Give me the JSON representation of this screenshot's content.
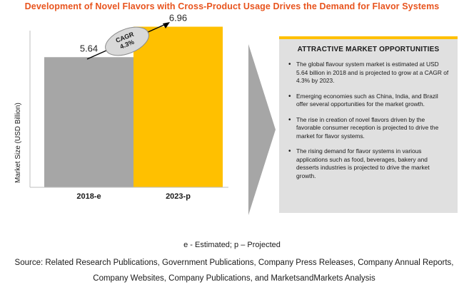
{
  "title": "Development of Novel Flavors with Cross-Product Usage Drives the Demand for Flavor Systems",
  "chart_data": {
    "type": "bar",
    "categories": [
      "2018-e",
      "2023-p"
    ],
    "values": [
      5.64,
      6.96
    ],
    "value_labels": [
      "5.64",
      "6.96"
    ],
    "ylabel": "Market Size (USD Billion)",
    "colors": [
      "#a6a6a6",
      "#ffc000"
    ],
    "ylim": [
      0,
      7.5
    ],
    "annotation": {
      "line1": "CAGR",
      "line2": "4.3%"
    }
  },
  "panel": {
    "title": "ATTRACTIVE MARKET OPPORTUNITIES",
    "bullets": [
      "The global flavour system market is estimated at USD 5.64 billion in 2018 and is projected to grow at a CAGR of 4.3% by 2023.",
      "Emerging economies such as China, India, and Brazil offer several opportunities for the market growth.",
      "The rise in creation of novel flavors driven by the favorable consumer reception is projected to drive the market for flavor systems.",
      "The rising demand for flavor systems in various applications such as food, beverages, bakery and desserts industries is projected to drive the market growth."
    ]
  },
  "legend": "e - Estimated; p – Projected",
  "source": "Source: Related Research Publications, Government Publications, Company Press Releases, Company Annual Reports, Company Websites, Company Publications, and MarketsandMarkets Analysis"
}
